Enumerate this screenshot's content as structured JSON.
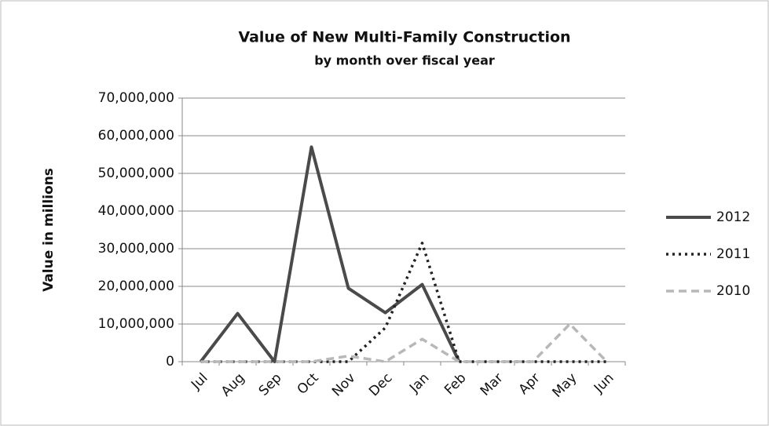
{
  "chart_data": {
    "type": "line",
    "title": "Value of New Multi-Family Construction",
    "subtitle": "by month over fiscal year",
    "y_label": "Value in millions",
    "categories": [
      "Jul",
      "Aug",
      "Sep",
      "Oct",
      "Nov",
      "Dec",
      "Jan",
      "Feb",
      "Mar",
      "Apr",
      "May",
      "Jun"
    ],
    "series": [
      {
        "name": "2012",
        "color": "#4a4a4a",
        "style": "solid",
        "values": [
          0,
          12800000,
          0,
          57000000,
          19500000,
          13000000,
          20500000,
          0,
          null,
          null,
          null,
          null
        ]
      },
      {
        "name": "2011",
        "color": "#222222",
        "style": "dotted",
        "values": [
          0,
          0,
          0,
          0,
          0,
          9000000,
          31500000,
          0,
          0,
          0,
          0,
          0
        ]
      },
      {
        "name": "2010",
        "color": "#b8b8b8",
        "style": "dashed",
        "values": [
          0,
          0,
          0,
          0,
          1500000,
          0,
          6000000,
          0,
          0,
          0,
          10000000,
          0
        ]
      }
    ],
    "ylim": [
      0,
      70000000
    ],
    "yticks": [
      0,
      {
        "value": 10000000,
        "label": "10,000,000"
      },
      {
        "value": 20000000,
        "label": "20,000,000"
      },
      {
        "value": 30000000,
        "label": "30,000,000"
      },
      {
        "value": 40000000,
        "label": "40,000,000"
      },
      {
        "value": 50000000,
        "label": "50,000,000"
      },
      {
        "value": 60000000,
        "label": "60,000,000"
      },
      {
        "value": 70000000,
        "label": "70,000,000"
      }
    ],
    "grid": true,
    "legend": "right"
  }
}
